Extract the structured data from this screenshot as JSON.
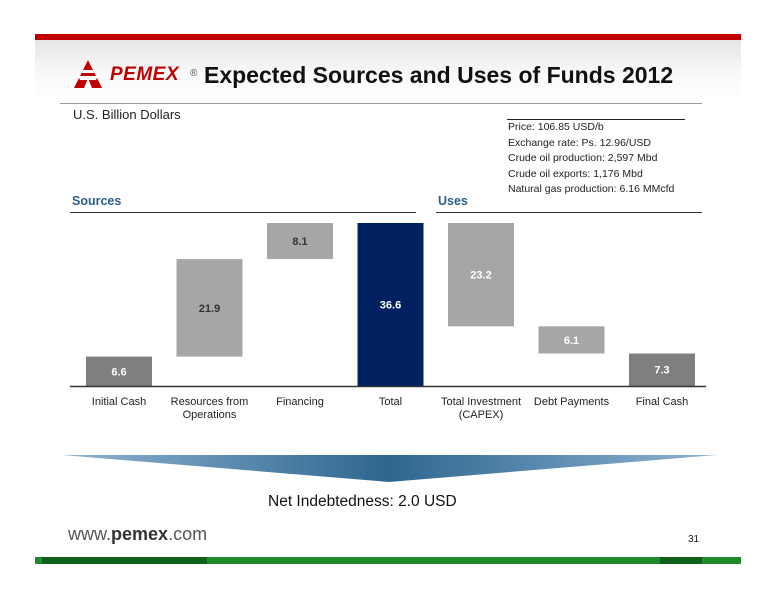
{
  "header": {
    "logo_text": "PEMEX",
    "logo_mark": "®",
    "title": "Expected Sources and Uses of Funds 2012"
  },
  "units": "U.S. Billion Dollars",
  "assumptions": [
    "Price: 106.85 USD/b",
    "Exchange rate: Ps. 12.96/USD",
    "Crude oil production: 2,597 Mbd",
    "Crude oil exports: 1,176 Mbd",
    "Natural gas production: 6.16 MMcfd"
  ],
  "sections": {
    "sources": "Sources",
    "uses": "Uses"
  },
  "chart_data": {
    "type": "bar",
    "subtype": "waterfall",
    "ylabel": "U.S. Billion Dollars",
    "ylim": [
      0,
      36.6
    ],
    "grid": false,
    "categories": [
      "Initial Cash",
      "Resources from Operations",
      "Financing",
      "Total",
      "Total Investment (CAPEX)",
      "Debt Payments",
      "Final Cash"
    ],
    "category_lines": [
      [
        "Initial Cash"
      ],
      [
        "Resources from",
        "Operations"
      ],
      [
        "Financing"
      ],
      [
        "Total"
      ],
      [
        "Total Investment",
        "(CAPEX)"
      ],
      [
        "Debt Payments"
      ],
      [
        "Final Cash"
      ]
    ],
    "values": [
      6.6,
      21.9,
      8.1,
      36.6,
      23.2,
      6.1,
      7.3
    ],
    "labels": [
      "6.6",
      "21.9",
      "8.1",
      "36.6",
      "23.2",
      "6.1",
      "7.3"
    ],
    "start": [
      0,
      6.6,
      28.5,
      0,
      13.4,
      7.3,
      0
    ],
    "colors": [
      "#7f7f7f",
      "#a6a6a6",
      "#a6a6a6",
      "#002060",
      "#a6a6a6",
      "#a6a6a6",
      "#7f7f7f"
    ],
    "label_colors": [
      "#ffffff",
      "#333333",
      "#333333",
      "#ffffff",
      "#ffffff",
      "#ffffff",
      "#ffffff"
    ]
  },
  "footer": {
    "net_indebtedness": "Net Indebtedness: 2.0 USD",
    "url_prefix": "www.",
    "url_brand": "pemex",
    "url_suffix": ".com",
    "page_number": "31"
  },
  "colors": {
    "accent_red": "#c00000",
    "section_blue": "#2b5f8c",
    "total_navy": "#002060",
    "footer_green": "#1f8a2a",
    "banner_blue": "#2e6690"
  }
}
